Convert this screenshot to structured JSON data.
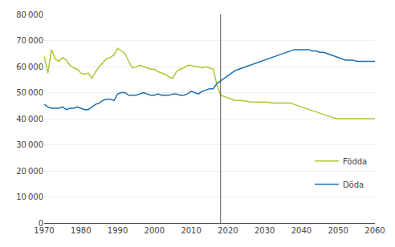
{
  "chart_data": {
    "type": "line",
    "xlim": [
      1970,
      2060
    ],
    "xticks": [
      1970,
      1980,
      1990,
      2000,
      2010,
      2020,
      2030,
      2040,
      2050,
      2060
    ],
    "ylim": [
      0,
      80000
    ],
    "yticks": [
      0,
      {
        "value": 10000,
        "label": "10 000"
      },
      {
        "value": 20000,
        "label": "20 000"
      },
      {
        "value": 30000,
        "label": "30 000"
      },
      {
        "value": 40000,
        "label": "40 000"
      },
      {
        "value": 50000,
        "label": "50 000"
      },
      {
        "value": 60000,
        "label": "60 000"
      },
      {
        "value": 70000,
        "label": "70 000"
      },
      {
        "value": 80000,
        "label": "80 000"
      }
    ],
    "grid": "y",
    "legend": "lower right",
    "vline_x": 2018,
    "series": [
      {
        "name": "Födda",
        "color": "#a8c932",
        "segments": [
          {
            "x": [
              1970,
              1971,
              1972,
              1973,
              1974,
              1975,
              1976,
              1977,
              1978,
              1979,
              1980,
              1981,
              1982,
              1983,
              1984,
              1985,
              1986,
              1987,
              1988,
              1989,
              1990,
              1991,
              1992,
              1993,
              1994,
              1995,
              1996,
              1997,
              1998,
              1999,
              2000,
              2001,
              2002,
              2003,
              2004,
              2005,
              2006,
              2007,
              2008,
              2009,
              2010,
              2011,
              2012,
              2013,
              2014,
              2015,
              2016,
              2017
            ],
            "values": [
              64000,
              57500,
              66500,
              63000,
              62000,
              63500,
              62500,
              60500,
              59500,
              59000,
              57500,
              57000,
              57500,
              55500,
              58000,
              60000,
              61500,
              63000,
              63500,
              64500,
              67000,
              66000,
              65000,
              62000,
              59500,
              59800,
              60500,
              60000,
              59500,
              59000,
              59000,
              58000,
              57500,
              57000,
              56000,
              55500,
              58000,
              59000,
              59500,
              60500,
              60500,
              60000,
              60000,
              59500,
              60000,
              59500,
              59000,
              53000
            ]
          },
          {
            "x": [
              2017,
              2018,
              2019,
              2020,
              2021,
              2022,
              2023,
              2024,
              2025,
              2026,
              2027,
              2028,
              2029,
              2030,
              2031,
              2032,
              2033,
              2034,
              2035,
              2036,
              2037,
              2038,
              2039,
              2040,
              2041,
              2042,
              2043,
              2044,
              2045,
              2046,
              2047,
              2048,
              2049,
              2050,
              2051,
              2052,
              2053,
              2054,
              2055,
              2056,
              2057,
              2058,
              2059,
              2060
            ],
            "values": [
              53000,
              49000,
              48500,
              48000,
              47500,
              47000,
              47000,
              47000,
              46800,
              46500,
              46500,
              46500,
              46500,
              46500,
              46300,
              46000,
              46000,
              46000,
              46000,
              46000,
              46000,
              45500,
              45000,
              44500,
              44000,
              43500,
              43000,
              42500,
              42000,
              41500,
              41000,
              40500,
              40200,
              40000,
              40000,
              40000,
              40000,
              40000,
              40000,
              40000,
              40000,
              40000,
              40000,
              40000
            ]
          }
        ]
      },
      {
        "name": "Döda",
        "color": "#1a6faf",
        "segments": [
          {
            "x": [
              1970,
              1971,
              1972,
              1973,
              1974,
              1975,
              1976,
              1977,
              1978,
              1979,
              1980,
              1981,
              1982,
              1983,
              1984,
              1985,
              1986,
              1987,
              1988,
              1989,
              1990,
              1991,
              1992,
              1993,
              1994,
              1995,
              1996,
              1997,
              1998,
              1999,
              2000,
              2001,
              2002,
              2003,
              2004,
              2005,
              2006,
              2007,
              2008,
              2009,
              2010,
              2011,
              2012,
              2013,
              2014,
              2015,
              2016,
              2017
            ],
            "values": [
              45500,
              44500,
              44000,
              44000,
              44000,
              44500,
              43500,
              44000,
              44000,
              44500,
              44000,
              43500,
              43500,
              44500,
              45500,
              46000,
              47000,
              47500,
              47500,
              47000,
              49500,
              50000,
              50000,
              49000,
              49000,
              49000,
              49500,
              50000,
              49500,
              49000,
              49000,
              49500,
              49000,
              49000,
              49000,
              49500,
              49500,
              49000,
              49000,
              49500,
              50500,
              50000,
              49500,
              50500,
              51000,
              51500,
              51500,
              53500
            ]
          },
          {
            "x": [
              2017,
              2018,
              2019,
              2020,
              2021,
              2022,
              2023,
              2024,
              2025,
              2026,
              2027,
              2028,
              2029,
              2030,
              2031,
              2032,
              2033,
              2034,
              2035,
              2036,
              2037,
              2038,
              2039,
              2040,
              2041,
              2042,
              2043,
              2044,
              2045,
              2046,
              2047,
              2048,
              2049,
              2050,
              2051,
              2052,
              2053,
              2054,
              2055,
              2056,
              2057,
              2058,
              2059,
              2060
            ],
            "values": [
              53500,
              54500,
              55500,
              56500,
              57500,
              58500,
              59000,
              59500,
              60000,
              60500,
              61000,
              61500,
              62000,
              62500,
              63000,
              63500,
              64000,
              64500,
              65000,
              65500,
              66000,
              66500,
              66500,
              66500,
              66500,
              66500,
              66000,
              66000,
              65500,
              65500,
              65000,
              64500,
              64000,
              63500,
              63000,
              62500,
              62500,
              62500,
              62000,
              62000,
              62000,
              62000,
              62000,
              62000
            ]
          }
        ]
      }
    ]
  }
}
